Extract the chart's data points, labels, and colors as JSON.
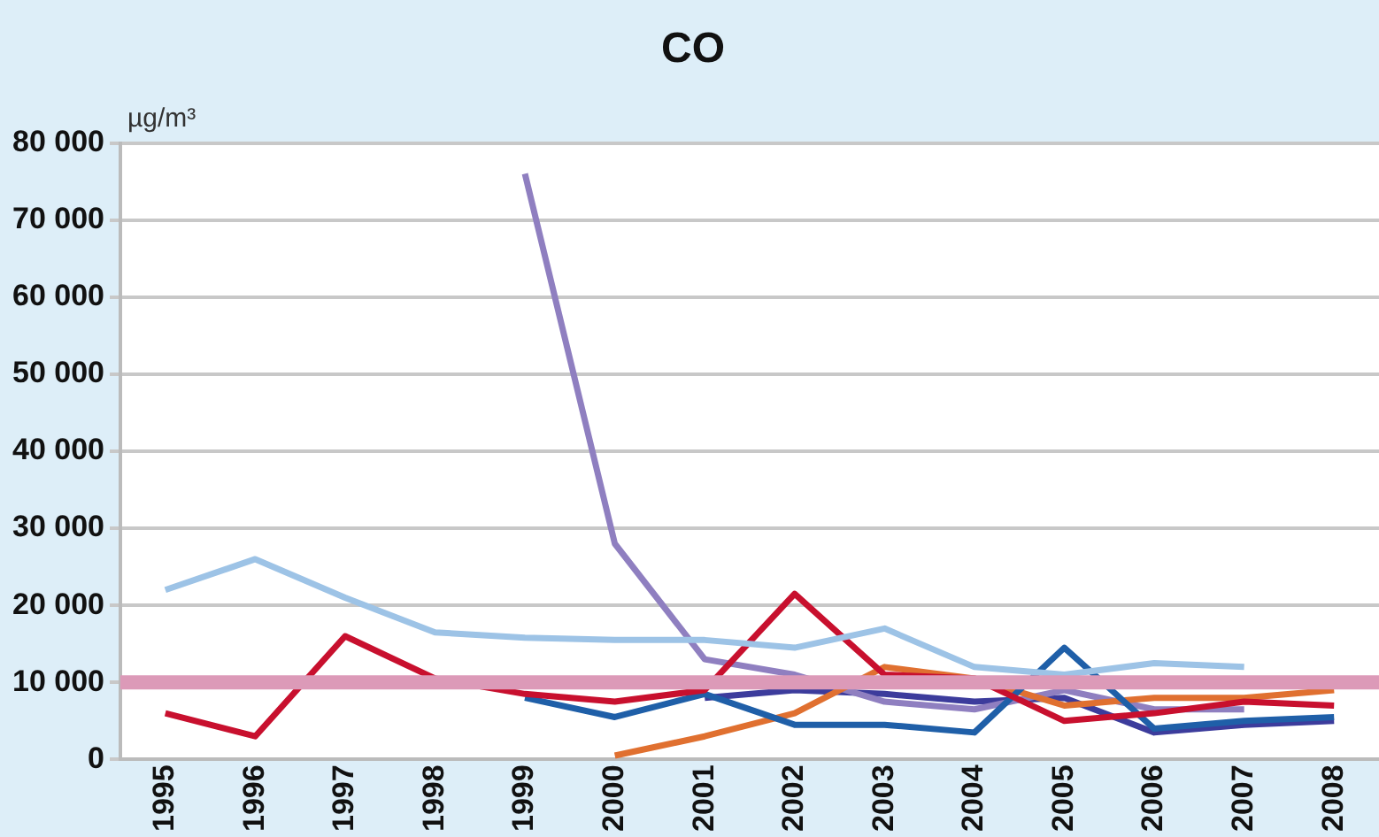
{
  "chart_data": {
    "type": "line",
    "title": "CO",
    "ylabel": "µg/m³",
    "categories": [
      "1995",
      "1996",
      "1997",
      "1998",
      "1999",
      "2000",
      "2001",
      "2002",
      "2003",
      "2004",
      "2005",
      "2006",
      "2007",
      "2008"
    ],
    "series": [
      {
        "color": "#9dc3e6",
        "values": [
          22000,
          26000,
          21000,
          16500,
          15800,
          15500,
          15500,
          14500,
          17000,
          12000,
          11000,
          12500,
          12000,
          null
        ]
      },
      {
        "color": "#c8102e",
        "values": [
          6000,
          3000,
          16000,
          10500,
          8500,
          7500,
          9000,
          21500,
          11000,
          10500,
          5000,
          6000,
          7500,
          7000
        ]
      },
      {
        "color": "#1f5fa8",
        "values": [
          null,
          null,
          null,
          null,
          8000,
          5500,
          8500,
          4500,
          4500,
          3500,
          14500,
          4000,
          5000,
          5500
        ]
      },
      {
        "color": "#e07030",
        "values": [
          null,
          null,
          null,
          null,
          null,
          500,
          3000,
          6000,
          12000,
          10500,
          7000,
          8000,
          8000,
          9000
        ]
      },
      {
        "color": "#8f7fc0",
        "values": [
          null,
          null,
          null,
          null,
          76000,
          28000,
          13000,
          11000,
          7500,
          6500,
          9000,
          6500,
          6500,
          null
        ]
      },
      {
        "color": "#3c3c9c",
        "values": [
          null,
          null,
          null,
          null,
          null,
          null,
          8000,
          9000,
          8500,
          7500,
          8000,
          3500,
          4500,
          5000
        ]
      }
    ],
    "ylim": [
      0,
      80000
    ],
    "yticks": [
      {
        "value": 0,
        "label": "0"
      },
      {
        "value": 10000,
        "label": "10 000"
      },
      {
        "value": 20000,
        "label": "20 000"
      },
      {
        "value": 30000,
        "label": "30 000"
      },
      {
        "value": 40000,
        "label": "40 000"
      },
      {
        "value": 50000,
        "label": "50 000"
      },
      {
        "value": 60000,
        "label": "60 000"
      },
      {
        "value": 70000,
        "label": "70 000"
      },
      {
        "value": 80000,
        "label": "80 000"
      }
    ],
    "ref_lines": [
      {
        "axis": "y",
        "value": 10000,
        "color": "#dc9ab8"
      }
    ],
    "grid": "y",
    "legend": false
  }
}
